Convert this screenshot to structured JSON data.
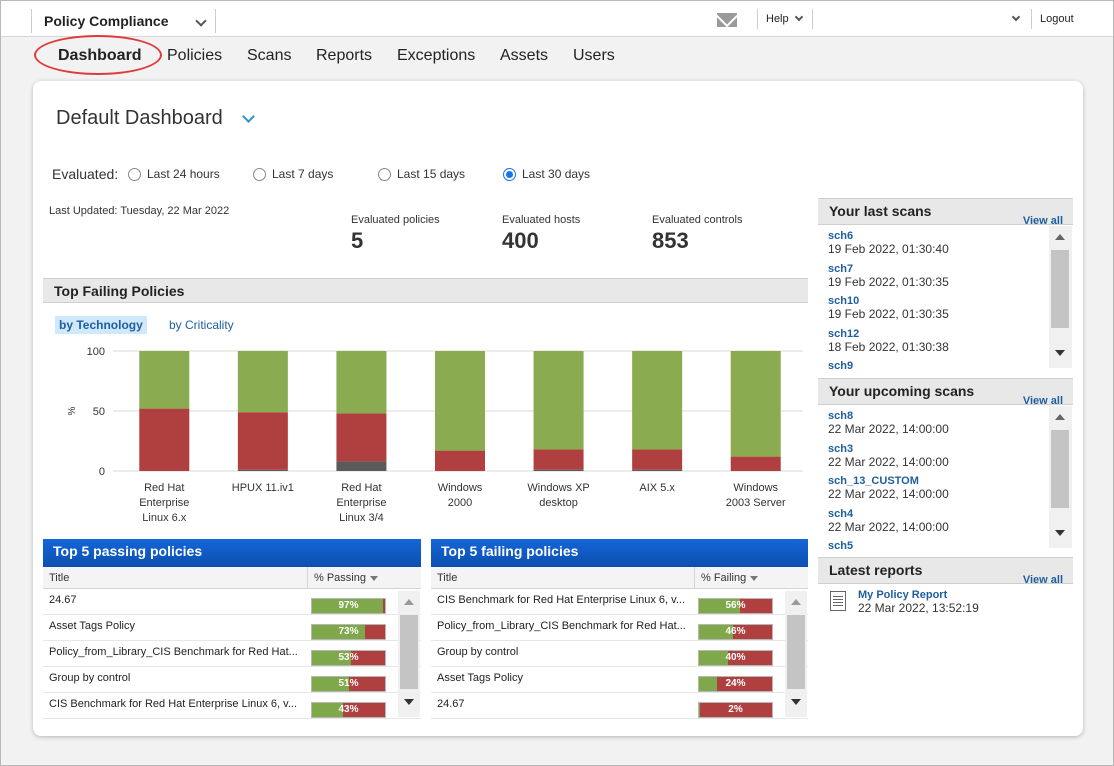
{
  "header": {
    "app_name": "Policy Compliance",
    "help_label": "Help",
    "logout_label": "Logout"
  },
  "nav": {
    "tabs": [
      "Dashboard",
      "Policies",
      "Scans",
      "Reports",
      "Exceptions",
      "Assets",
      "Users"
    ],
    "active": "Dashboard"
  },
  "dashboard": {
    "title": "Default Dashboard",
    "evaluated_label": "Evaluated:",
    "ranges": [
      "Last 24 hours",
      "Last 7 days",
      "Last 15 days",
      "Last 30 days"
    ],
    "selected_range": "Last 30 days",
    "last_updated": "Last Updated: Tuesday, 22 Mar 2022",
    "stats": [
      {
        "label": "Evaluated policies",
        "value": "5"
      },
      {
        "label": "Evaluated hosts",
        "value": "400"
      },
      {
        "label": "Evaluated controls",
        "value": "853"
      }
    ]
  },
  "top_failing": {
    "title": "Top Failing Policies",
    "tabs": [
      "by Technology",
      "by Criticality"
    ],
    "selected_tab": "by Technology"
  },
  "chart_data": {
    "type": "bar",
    "stacked": true,
    "categories": [
      "Red Hat Enterprise Linux 6.x",
      "HPUX 11.iv1",
      "Red Hat Enterprise Linux 3/4",
      "Windows 2000",
      "Windows XP desktop",
      "AIX 5.x",
      "Windows 2003 Server"
    ],
    "category_lines": [
      [
        "Red Hat",
        "Enterprise",
        "Linux 6.x"
      ],
      [
        "HPUX 11.iv1"
      ],
      [
        "Red Hat",
        "Enterprise",
        "Linux 3/4"
      ],
      [
        "Windows",
        "2000"
      ],
      [
        "Windows XP",
        "desktop"
      ],
      [
        "AIX 5.x"
      ],
      [
        "Windows",
        "2003 Server"
      ]
    ],
    "series": [
      {
        "color": "#5a5a5a",
        "values": [
          0,
          1,
          8,
          0,
          1,
          1,
          0
        ]
      },
      {
        "color": "#b0403f",
        "values": [
          52,
          48,
          40,
          17,
          17,
          17,
          12
        ]
      },
      {
        "color": "#8aab4f",
        "values": [
          48,
          51,
          52,
          83,
          82,
          82,
          88
        ]
      }
    ],
    "ylabel": "%",
    "yticks": [
      0,
      50,
      100
    ],
    "ylim": [
      0,
      100
    ],
    "grid": true
  },
  "passing_table": {
    "title": "Top 5 passing policies",
    "col_title": "Title",
    "col_value": "% Passing",
    "rows": [
      {
        "title": "24.67",
        "value": 97,
        "label": "97%"
      },
      {
        "title": "Asset Tags Policy",
        "value": 73,
        "label": "73%"
      },
      {
        "title": "Policy_from_Library_CIS Benchmark for Red Hat...",
        "value": 53,
        "label": "53%"
      },
      {
        "title": "Group by control",
        "value": 51,
        "label": "51%"
      },
      {
        "title": "CIS Benchmark for Red Hat Enterprise Linux 6, v...",
        "value": 43,
        "label": "43%"
      }
    ]
  },
  "failing_table": {
    "title": "Top 5 failing policies",
    "col_title": "Title",
    "col_value": "% Failing",
    "rows": [
      {
        "title": "CIS Benchmark for Red Hat Enterprise Linux 6, v...",
        "value": 56,
        "label": "56%"
      },
      {
        "title": "Policy_from_Library_CIS Benchmark for Red Hat...",
        "value": 46,
        "label": "46%"
      },
      {
        "title": "Group by control",
        "value": 40,
        "label": "40%"
      },
      {
        "title": "Asset Tags Policy",
        "value": 24,
        "label": "24%"
      },
      {
        "title": "24.67",
        "value": 2,
        "label": "2%"
      }
    ]
  },
  "last_scans": {
    "title": "Your last scans",
    "view_all": "View all",
    "items": [
      {
        "name": "sch6",
        "date": "19 Feb 2022, 01:30:40"
      },
      {
        "name": "sch7",
        "date": "19 Feb 2022, 01:30:35"
      },
      {
        "name": "sch10",
        "date": "19 Feb 2022, 01:30:35"
      },
      {
        "name": "sch12",
        "date": "18 Feb 2022, 01:30:38"
      },
      {
        "name": "sch9",
        "date": ""
      }
    ]
  },
  "upcoming_scans": {
    "title": "Your upcoming scans",
    "view_all": "View all",
    "items": [
      {
        "name": "sch8",
        "date": "22 Mar 2022, 14:00:00"
      },
      {
        "name": "sch3",
        "date": "22 Mar 2022, 14:00:00"
      },
      {
        "name": "sch_13_CUSTOM",
        "date": "22 Mar 2022, 14:00:00"
      },
      {
        "name": "sch4",
        "date": "22 Mar 2022, 14:00:00"
      },
      {
        "name": "sch5",
        "date": ""
      }
    ]
  },
  "latest_reports": {
    "title": "Latest reports",
    "view_all": "View all",
    "items": [
      {
        "name": "My Policy Report",
        "date": "22 Mar 2022, 13:52:19"
      }
    ]
  }
}
